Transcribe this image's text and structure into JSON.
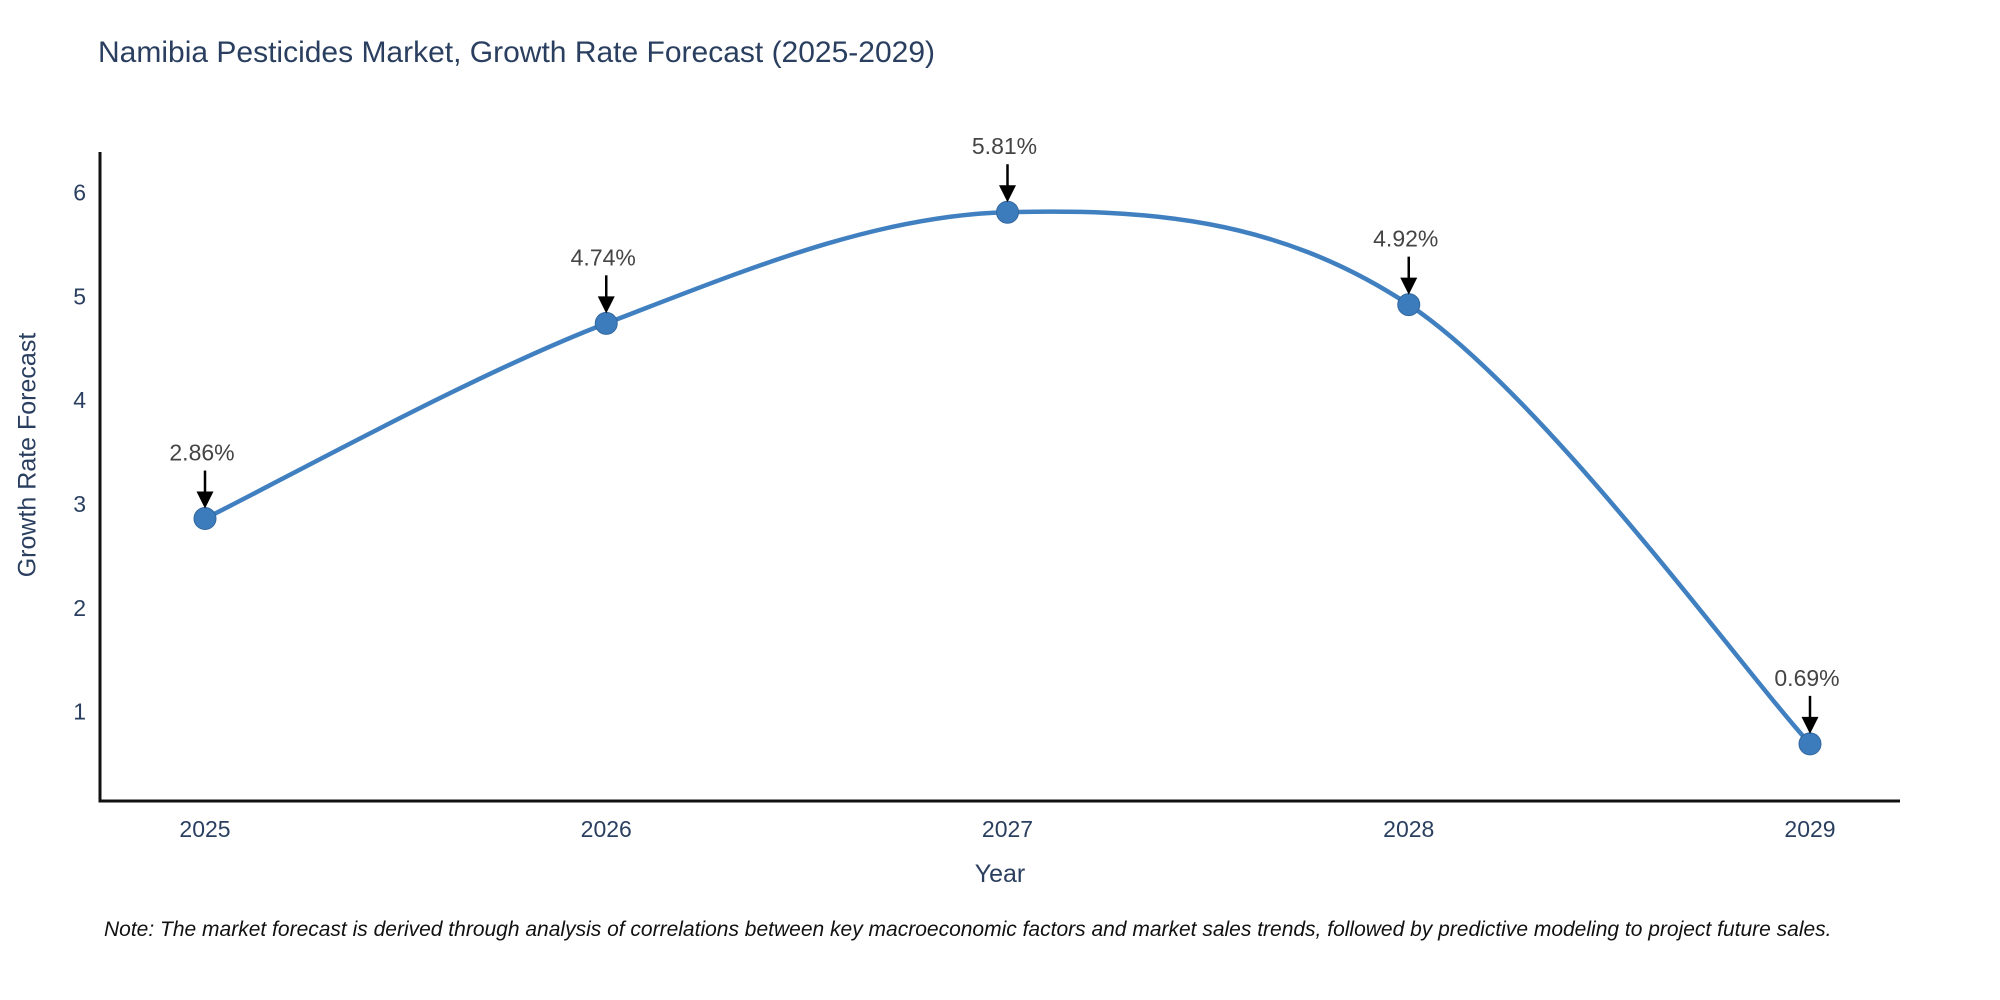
{
  "title": "Namibia Pesticides Market, Growth Rate Forecast (2025-2029)",
  "note": "Note: The market forecast is derived through analysis of correlations between key macroeconomic factors and market sales trends, followed by predictive modeling to project future sales.",
  "chart_data": {
    "type": "line",
    "title": "Namibia Pesticides Market, Growth Rate Forecast (2025-2029)",
    "xlabel": "Year",
    "ylabel": "Growth Rate Forecast",
    "categories": [
      "2025",
      "2026",
      "2027",
      "2028",
      "2029"
    ],
    "values": [
      2.86,
      4.74,
      5.81,
      4.92,
      0.69
    ],
    "point_labels": [
      "2.86%",
      "4.74%",
      "5.81%",
      "4.92%",
      "0.69%"
    ],
    "yticks": [
      1,
      2,
      3,
      4,
      5,
      6
    ],
    "ylim": [
      0.14,
      6.39
    ],
    "line_shape": "spline",
    "grid": false,
    "legend": "none",
    "annotation_style": "black-down-arrow-to-point",
    "colors": {
      "line": "#4080c0",
      "marker": "#3c7cbd",
      "marker_edge": "#33679d",
      "axis": "#111111",
      "tick_text": "#2a3f5f",
      "annotation_text": "#444444",
      "arrow": "#000000",
      "background": "#ffffff"
    }
  }
}
